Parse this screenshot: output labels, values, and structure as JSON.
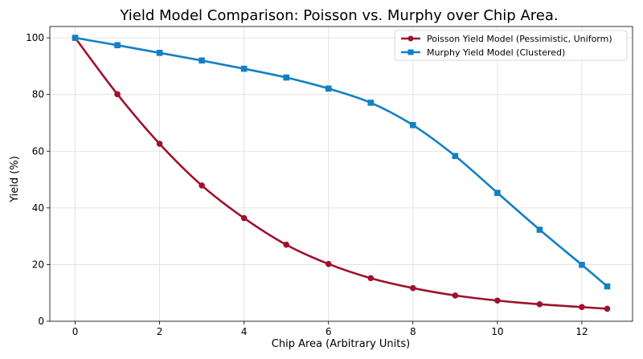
{
  "chart_data": {
    "type": "line",
    "title": "Yield Model Comparison: Poisson vs. Murphy over Chip Area.",
    "xlabel": "Chip Area (Arbitrary Units)",
    "ylabel": "Yield (%)",
    "xlim": [
      -0.6,
      13.2
    ],
    "ylim": [
      0,
      104
    ],
    "xticks": [
      0,
      2,
      4,
      6,
      8,
      10,
      12
    ],
    "yticks": [
      0,
      20,
      40,
      60,
      80,
      100
    ],
    "grid": true,
    "legend_position": "top-right",
    "series": [
      {
        "name": "Poisson Yield Model (Pessimistic, Uniform)",
        "color": "#a0112e",
        "marker": "circle",
        "x": [
          0,
          1,
          2,
          3,
          4,
          5,
          6,
          7,
          8,
          9,
          10,
          11,
          12,
          12.6
        ],
        "y": [
          100,
          80.1,
          62.6,
          47.9,
          36.4,
          27,
          20.2,
          15.2,
          11.7,
          9.1,
          7.3,
          6,
          5,
          4.4
        ]
      },
      {
        "name": "Murphy Yield Model (Clustered)",
        "color": "#1380c4",
        "marker": "square",
        "x": [
          0,
          1,
          2,
          3,
          4,
          5,
          6,
          7,
          8,
          9,
          10,
          11,
          12,
          12.6
        ],
        "y": [
          100,
          97.4,
          94.7,
          92,
          89.1,
          86,
          82.1,
          77.1,
          69.2,
          58.3,
          45.3,
          32.3,
          19.9,
          12.3
        ]
      }
    ]
  }
}
